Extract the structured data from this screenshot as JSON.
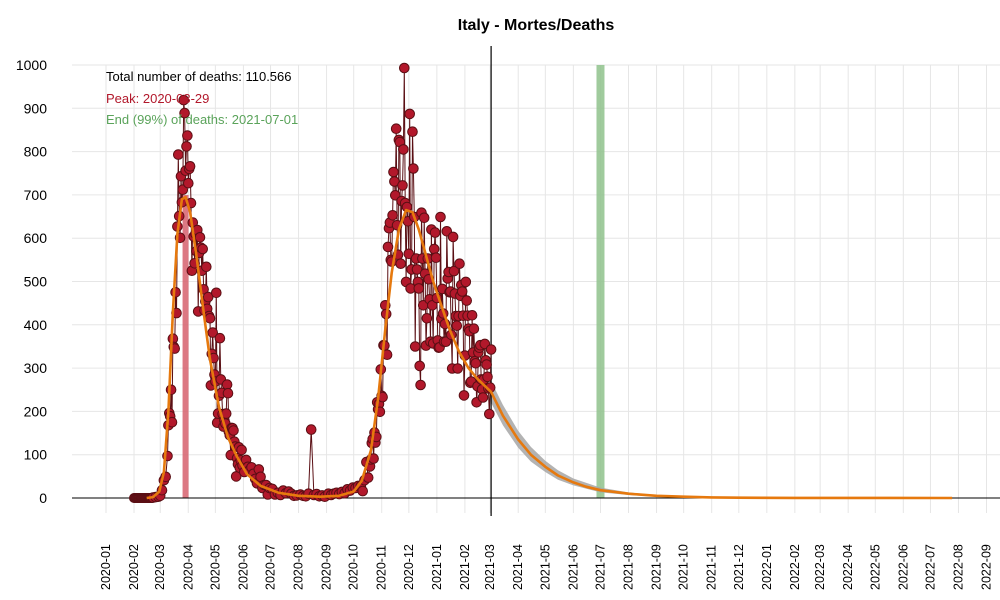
{
  "chart_data": {
    "type": "scatter",
    "title": "Italy - Mortes/Deaths",
    "xlabel": "",
    "ylabel": "",
    "ylim": [
      0,
      1000
    ],
    "xlim": [
      "2019-12-15",
      "2023-01-31"
    ],
    "y_ticks": [
      0,
      100,
      200,
      300,
      400,
      500,
      600,
      700,
      800,
      900,
      1000
    ],
    "x_ticks": [
      "2020-01",
      "2020-02",
      "2020-03",
      "2020-04",
      "2020-05",
      "2020-06",
      "2020-07",
      "2020-08",
      "2020-09",
      "2020-10",
      "2020-11",
      "2020-12",
      "2021-01",
      "2021-02",
      "2021-03",
      "2021-04",
      "2021-05",
      "2021-06",
      "2021-07",
      "2021-08",
      "2021-09",
      "2021-10",
      "2021-11",
      "2021-12",
      "2022-01",
      "2022-02",
      "2022-03",
      "2022-04",
      "2022-05",
      "2022-06",
      "2022-07",
      "2022-08",
      "2022-09",
      "2022-10",
      "2022-11",
      "2022-12"
    ],
    "grid": true,
    "annotations": {
      "total": "Total number of deaths: 110.566",
      "peak": "Peak: 2020-03-29",
      "end": "End (99%) of deaths: 2021-07-01"
    },
    "peak_date": "2020-03-29",
    "end_date": "2021-07-01",
    "current_date": "2021-03-02",
    "colors": {
      "points": "#b2182b",
      "points_stroke": "#5a0f14",
      "fit": "#e6790e",
      "band": "#a6a6a6",
      "peak_band": "#d6606d",
      "end_band": "#8fc28c",
      "end_text": "#5aa35a",
      "peak_text": "#b2182b"
    },
    "fit_curve": [
      [
        "2020-02-15",
        0
      ],
      [
        "2020-02-22",
        2
      ],
      [
        "2020-02-29",
        15
      ],
      [
        "2020-03-05",
        60
      ],
      [
        "2020-03-10",
        200
      ],
      [
        "2020-03-15",
        430
      ],
      [
        "2020-03-20",
        610
      ],
      [
        "2020-03-25",
        690
      ],
      [
        "2020-03-29",
        695
      ],
      [
        "2020-04-03",
        660
      ],
      [
        "2020-04-10",
        560
      ],
      [
        "2020-04-18",
        430
      ],
      [
        "2020-04-25",
        320
      ],
      [
        "2020-05-05",
        210
      ],
      [
        "2020-05-15",
        140
      ],
      [
        "2020-05-25",
        95
      ],
      [
        "2020-06-05",
        55
      ],
      [
        "2020-06-20",
        28
      ],
      [
        "2020-07-10",
        12
      ],
      [
        "2020-08-01",
        5
      ],
      [
        "2020-08-25",
        3
      ],
      [
        "2020-09-15",
        5
      ],
      [
        "2020-10-01",
        15
      ],
      [
        "2020-10-10",
        40
      ],
      [
        "2020-10-20",
        110
      ],
      [
        "2020-10-28",
        230
      ],
      [
        "2020-11-05",
        390
      ],
      [
        "2020-11-12",
        520
      ],
      [
        "2020-11-20",
        620
      ],
      [
        "2020-11-28",
        665
      ],
      [
        "2020-12-05",
        660
      ],
      [
        "2020-12-12",
        620
      ],
      [
        "2020-12-20",
        560
      ],
      [
        "2020-12-28",
        500
      ],
      [
        "2021-01-05",
        450
      ],
      [
        "2021-01-15",
        390
      ],
      [
        "2021-01-25",
        340
      ],
      [
        "2021-02-05",
        300
      ],
      [
        "2021-02-15",
        275
      ],
      [
        "2021-03-02",
        245
      ],
      [
        "2021-03-15",
        190
      ],
      [
        "2021-04-01",
        135
      ],
      [
        "2021-04-15",
        100
      ],
      [
        "2021-05-01",
        72
      ],
      [
        "2021-05-15",
        52
      ],
      [
        "2021-06-01",
        36
      ],
      [
        "2021-06-15",
        26
      ],
      [
        "2021-07-01",
        18
      ],
      [
        "2021-08-01",
        10
      ],
      [
        "2021-09-01",
        5
      ],
      [
        "2021-10-01",
        3
      ],
      [
        "2021-11-01",
        1.5
      ],
      [
        "2021-12-01",
        0.8
      ],
      [
        "2022-02-01",
        0.3
      ],
      [
        "2022-07-25",
        0
      ]
    ],
    "band_upper": [
      [
        "2021-03-02",
        270
      ],
      [
        "2021-03-15",
        215
      ],
      [
        "2021-04-01",
        155
      ],
      [
        "2021-04-15",
        118
      ],
      [
        "2021-05-01",
        86
      ],
      [
        "2021-05-15",
        64
      ],
      [
        "2021-06-01",
        45
      ],
      [
        "2021-07-01",
        24
      ],
      [
        "2021-08-01",
        13
      ],
      [
        "2021-09-01",
        7
      ],
      [
        "2021-10-01",
        4
      ],
      [
        "2021-11-01",
        2
      ],
      [
        "2022-01-01",
        0.6
      ]
    ],
    "band_lower": [
      [
        "2021-03-02",
        220
      ],
      [
        "2021-03-15",
        168
      ],
      [
        "2021-04-01",
        116
      ],
      [
        "2021-04-15",
        84
      ],
      [
        "2021-05-01",
        60
      ],
      [
        "2021-05-15",
        42
      ],
      [
        "2021-06-01",
        29
      ],
      [
        "2021-07-01",
        13
      ],
      [
        "2021-08-01",
        7
      ],
      [
        "2021-09-01",
        3
      ],
      [
        "2021-10-01",
        2
      ],
      [
        "2021-11-01",
        1
      ],
      [
        "2022-01-01",
        0.2
      ]
    ],
    "observed": [
      [
        "2020-02-22",
        1
      ],
      [
        "2020-02-25",
        2
      ],
      [
        "2020-02-28",
        3
      ],
      [
        "2020-03-01",
        5
      ],
      [
        "2020-03-03",
        18
      ],
      [
        "2020-03-05",
        41
      ],
      [
        "2020-03-07",
        49
      ],
      [
        "2020-03-09",
        97
      ],
      [
        "2020-03-10",
        168
      ],
      [
        "2020-03-11",
        196
      ],
      [
        "2020-03-12",
        189
      ],
      [
        "2020-03-13",
        250
      ],
      [
        "2020-03-14",
        175
      ],
      [
        "2020-03-15",
        368
      ],
      [
        "2020-03-16",
        349
      ],
      [
        "2020-03-17",
        345
      ],
      [
        "2020-03-18",
        475
      ],
      [
        "2020-03-19",
        427
      ],
      [
        "2020-03-20",
        627
      ],
      [
        "2020-03-21",
        793
      ],
      [
        "2020-03-22",
        651
      ],
      [
        "2020-03-23",
        601
      ],
      [
        "2020-03-24",
        743
      ],
      [
        "2020-03-25",
        683
      ],
      [
        "2020-03-26",
        712
      ],
      [
        "2020-03-27",
        919
      ],
      [
        "2020-03-28",
        889
      ],
      [
        "2020-03-29",
        756
      ],
      [
        "2020-03-30",
        812
      ],
      [
        "2020-03-31",
        837
      ],
      [
        "2020-04-01",
        727
      ],
      [
        "2020-04-02",
        760
      ],
      [
        "2020-04-03",
        766
      ],
      [
        "2020-04-04",
        681
      ],
      [
        "2020-04-05",
        525
      ],
      [
        "2020-04-06",
        636
      ],
      [
        "2020-04-07",
        604
      ],
      [
        "2020-04-08",
        542
      ],
      [
        "2020-04-09",
        610
      ],
      [
        "2020-04-10",
        570
      ],
      [
        "2020-04-11",
        619
      ],
      [
        "2020-04-12",
        431
      ],
      [
        "2020-04-13",
        566
      ],
      [
        "2020-04-14",
        602
      ],
      [
        "2020-04-15",
        578
      ],
      [
        "2020-04-16",
        525
      ],
      [
        "2020-04-17",
        575
      ],
      [
        "2020-04-18",
        482
      ],
      [
        "2020-04-19",
        433
      ],
      [
        "2020-04-20",
        454
      ],
      [
        "2020-04-21",
        534
      ],
      [
        "2020-04-22",
        437
      ],
      [
        "2020-04-23",
        464
      ],
      [
        "2020-04-24",
        420
      ],
      [
        "2020-04-25",
        415
      ],
      [
        "2020-04-26",
        260
      ],
      [
        "2020-04-27",
        333
      ],
      [
        "2020-04-28",
        382
      ],
      [
        "2020-04-29",
        323
      ],
      [
        "2020-04-30",
        285
      ],
      [
        "2020-05-01",
        269
      ],
      [
        "2020-05-02",
        474
      ],
      [
        "2020-05-03",
        174
      ],
      [
        "2020-05-04",
        195
      ],
      [
        "2020-05-05",
        236
      ],
      [
        "2020-05-06",
        369
      ],
      [
        "2020-05-07",
        274
      ],
      [
        "2020-05-08",
        243
      ],
      [
        "2020-05-09",
        194
      ],
      [
        "2020-05-10",
        165
      ],
      [
        "2020-05-11",
        179
      ],
      [
        "2020-05-12",
        172
      ],
      [
        "2020-05-13",
        195
      ],
      [
        "2020-05-14",
        262
      ],
      [
        "2020-05-15",
        242
      ],
      [
        "2020-05-16",
        153
      ],
      [
        "2020-05-17",
        145
      ],
      [
        "2020-05-18",
        99
      ],
      [
        "2020-05-19",
        162
      ],
      [
        "2020-05-20",
        161
      ],
      [
        "2020-05-21",
        156
      ],
      [
        "2020-05-22",
        130
      ],
      [
        "2020-05-23",
        119
      ],
      [
        "2020-05-24",
        50
      ],
      [
        "2020-05-25",
        92
      ],
      [
        "2020-05-26",
        78
      ],
      [
        "2020-05-27",
        117
      ],
      [
        "2020-05-28",
        70
      ],
      [
        "2020-05-29",
        87
      ],
      [
        "2020-05-30",
        111
      ],
      [
        "2020-05-31",
        75
      ],
      [
        "2020-06-02",
        60
      ],
      [
        "2020-06-04",
        88
      ],
      [
        "2020-06-06",
        72
      ],
      [
        "2020-06-08",
        65
      ],
      [
        "2020-06-10",
        71
      ],
      [
        "2020-06-12",
        56
      ],
      [
        "2020-06-14",
        44
      ],
      [
        "2020-06-16",
        34
      ],
      [
        "2020-06-18",
        66
      ],
      [
        "2020-06-20",
        49
      ],
      [
        "2020-06-22",
        23
      ],
      [
        "2020-06-24",
        30
      ],
      [
        "2020-06-26",
        30
      ],
      [
        "2020-06-28",
        8
      ],
      [
        "2020-06-30",
        23
      ],
      [
        "2020-07-03",
        21
      ],
      [
        "2020-07-06",
        8
      ],
      [
        "2020-07-09",
        12
      ],
      [
        "2020-07-12",
        7
      ],
      [
        "2020-07-15",
        17
      ],
      [
        "2020-07-18",
        11
      ],
      [
        "2020-07-21",
        15
      ],
      [
        "2020-07-24",
        10
      ],
      [
        "2020-07-27",
        5
      ],
      [
        "2020-07-30",
        6
      ],
      [
        "2020-08-03",
        8
      ],
      [
        "2020-08-06",
        5
      ],
      [
        "2020-08-09",
        4
      ],
      [
        "2020-08-12",
        10
      ],
      [
        "2020-08-15",
        158
      ],
      [
        "2020-08-18",
        7
      ],
      [
        "2020-08-21",
        9
      ],
      [
        "2020-08-24",
        4
      ],
      [
        "2020-08-27",
        6
      ],
      [
        "2020-08-30",
        3
      ],
      [
        "2020-09-03",
        10
      ],
      [
        "2020-09-06",
        7
      ],
      [
        "2020-09-09",
        10
      ],
      [
        "2020-09-12",
        12
      ],
      [
        "2020-09-15",
        9
      ],
      [
        "2020-09-18",
        14
      ],
      [
        "2020-09-21",
        11
      ],
      [
        "2020-09-24",
        20
      ],
      [
        "2020-09-27",
        17
      ],
      [
        "2020-09-30",
        24
      ],
      [
        "2020-10-03",
        23
      ],
      [
        "2020-10-06",
        28
      ],
      [
        "2020-10-09",
        28
      ],
      [
        "2020-10-11",
        16
      ],
      [
        "2020-10-13",
        41
      ],
      [
        "2020-10-15",
        83
      ],
      [
        "2020-10-17",
        47
      ],
      [
        "2020-10-19",
        73
      ],
      [
        "2020-10-20",
        89
      ],
      [
        "2020-10-21",
        127
      ],
      [
        "2020-10-22",
        136
      ],
      [
        "2020-10-23",
        91
      ],
      [
        "2020-10-24",
        151
      ],
      [
        "2020-10-25",
        128
      ],
      [
        "2020-10-26",
        141
      ],
      [
        "2020-10-27",
        221
      ],
      [
        "2020-10-28",
        205
      ],
      [
        "2020-10-29",
        217
      ],
      [
        "2020-10-30",
        199
      ],
      [
        "2020-10-31",
        297
      ],
      [
        "2020-11-01",
        236
      ],
      [
        "2020-11-02",
        233
      ],
      [
        "2020-11-03",
        353
      ],
      [
        "2020-11-04",
        352
      ],
      [
        "2020-11-05",
        445
      ],
      [
        "2020-11-06",
        425
      ],
      [
        "2020-11-07",
        331
      ],
      [
        "2020-11-08",
        580
      ],
      [
        "2020-11-09",
        623
      ],
      [
        "2020-11-10",
        636
      ],
      [
        "2020-11-11",
        550
      ],
      [
        "2020-11-12",
        546
      ],
      [
        "2020-11-13",
        653
      ],
      [
        "2020-11-14",
        753
      ],
      [
        "2020-11-15",
        731
      ],
      [
        "2020-11-16",
        699
      ],
      [
        "2020-11-17",
        853
      ],
      [
        "2020-11-18",
        630
      ],
      [
        "2020-11-19",
        562
      ],
      [
        "2020-11-20",
        827
      ],
      [
        "2020-11-21",
        822
      ],
      [
        "2020-11-22",
        541
      ],
      [
        "2020-11-23",
        686
      ],
      [
        "2020-11-24",
        722
      ],
      [
        "2020-11-25",
        805
      ],
      [
        "2020-11-26",
        993
      ],
      [
        "2020-11-27",
        681
      ],
      [
        "2020-11-28",
        499
      ],
      [
        "2020-11-29",
        672
      ],
      [
        "2020-11-30",
        639
      ],
      [
        "2020-12-01",
        564
      ],
      [
        "2020-12-02",
        887
      ],
      [
        "2020-12-03",
        484
      ],
      [
        "2020-12-04",
        528
      ],
      [
        "2020-12-05",
        846
      ],
      [
        "2020-12-06",
        761
      ],
      [
        "2020-12-07",
        649
      ],
      [
        "2020-12-08",
        350
      ],
      [
        "2020-12-09",
        553
      ],
      [
        "2020-12-10",
        528
      ],
      [
        "2020-12-11",
        499
      ],
      [
        "2020-12-12",
        484
      ],
      [
        "2020-12-13",
        305
      ],
      [
        "2020-12-14",
        261
      ],
      [
        "2020-12-15",
        659
      ],
      [
        "2020-12-16",
        553
      ],
      [
        "2020-12-17",
        445
      ],
      [
        "2020-12-18",
        647
      ],
      [
        "2020-12-19",
        518
      ],
      [
        "2020-12-20",
        352
      ],
      [
        "2020-12-21",
        415
      ],
      [
        "2020-12-22",
        553
      ],
      [
        "2020-12-23",
        505
      ],
      [
        "2020-12-24",
        459
      ],
      [
        "2020-12-25",
        361
      ],
      [
        "2020-12-26",
        620
      ],
      [
        "2020-12-27",
        445
      ],
      [
        "2020-12-28",
        357
      ],
      [
        "2020-12-29",
        575
      ],
      [
        "2020-12-30",
        613
      ],
      [
        "2020-12-31",
        555
      ],
      [
        "2021-01-01",
        462
      ],
      [
        "2021-01-02",
        364
      ],
      [
        "2021-01-03",
        347
      ],
      [
        "2021-01-04",
        348
      ],
      [
        "2021-01-05",
        649
      ],
      [
        "2021-01-06",
        414
      ],
      [
        "2021-01-07",
        483
      ],
      [
        "2021-01-08",
        426
      ],
      [
        "2021-01-09",
        361
      ],
      [
        "2021-01-10",
        402
      ],
      [
        "2021-01-11",
        361
      ],
      [
        "2021-01-12",
        616
      ],
      [
        "2021-01-13",
        507
      ],
      [
        "2021-01-14",
        522
      ],
      [
        "2021-01-15",
        475
      ],
      [
        "2021-01-16",
        477
      ],
      [
        "2021-01-17",
        377
      ],
      [
        "2021-01-18",
        299
      ],
      [
        "2021-01-19",
        603
      ],
      [
        "2021-01-20",
        524
      ],
      [
        "2021-01-21",
        472
      ],
      [
        "2021-01-22",
        420
      ],
      [
        "2021-01-23",
        398
      ],
      [
        "2021-01-24",
        299
      ],
      [
        "2021-01-25",
        420
      ],
      [
        "2021-01-26",
        541
      ],
      [
        "2021-01-27",
        467
      ],
      [
        "2021-01-28",
        492
      ],
      [
        "2021-01-29",
        477
      ],
      [
        "2021-01-30",
        421
      ],
      [
        "2021-01-31",
        237
      ],
      [
        "2021-02-01",
        329
      ],
      [
        "2021-02-02",
        499
      ],
      [
        "2021-02-03",
        456
      ],
      [
        "2021-02-04",
        421
      ],
      [
        "2021-02-05",
        391
      ],
      [
        "2021-02-06",
        385
      ],
      [
        "2021-02-07",
        266
      ],
      [
        "2021-02-08",
        269
      ],
      [
        "2021-02-09",
        422
      ],
      [
        "2021-02-10",
        336
      ],
      [
        "2021-02-11",
        391
      ],
      [
        "2021-02-12",
        316
      ],
      [
        "2021-02-13",
        311
      ],
      [
        "2021-02-14",
        221
      ],
      [
        "2021-02-15",
        258
      ],
      [
        "2021-02-16",
        336
      ],
      [
        "2021-02-17",
        347
      ],
      [
        "2021-02-18",
        353
      ],
      [
        "2021-02-19",
        274
      ],
      [
        "2021-02-20",
        251
      ],
      [
        "2021-02-21",
        232
      ],
      [
        "2021-02-22",
        274
      ],
      [
        "2021-02-23",
        356
      ],
      [
        "2021-02-24",
        318
      ],
      [
        "2021-02-25",
        308
      ],
      [
        "2021-02-26",
        280
      ],
      [
        "2021-02-27",
        253
      ],
      [
        "2021-02-28",
        194
      ],
      [
        "2021-03-01",
        255
      ],
      [
        "2021-03-02",
        343
      ]
    ],
    "flat_points_start": "2020-02-01",
    "flat_points_end": "2020-02-21"
  }
}
